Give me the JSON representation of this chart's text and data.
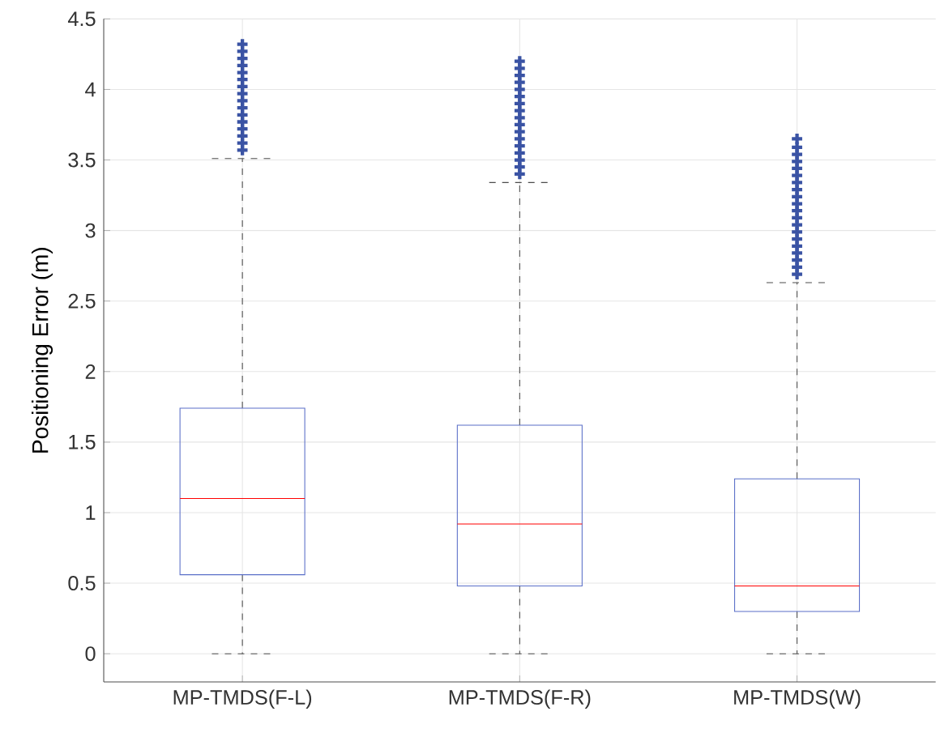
{
  "chart_data": {
    "type": "box",
    "ylabel": "Positioning Error (m)",
    "categories": [
      "MP-TMDS(F-L)",
      "MP-TMDS(F-R)",
      "MP-TMDS(W)"
    ],
    "color": "#5a6fc8",
    "boxes": [
      {
        "low": 0,
        "q1": 0.56,
        "median": 1.1,
        "q3": 1.74,
        "high": 3.51,
        "outliers": [
          3.57,
          3.62,
          3.67,
          3.72,
          3.77,
          3.82,
          3.87,
          3.92,
          3.97,
          4.02,
          4.07,
          4.12,
          4.17,
          4.22,
          4.27,
          4.32
        ]
      },
      {
        "low": 0,
        "q1": 0.48,
        "median": 0.92,
        "q3": 1.62,
        "high": 3.34,
        "outliers": [
          3.4,
          3.45,
          3.5,
          3.55,
          3.6,
          3.65,
          3.7,
          3.75,
          3.8,
          3.85,
          3.9,
          3.95,
          4.0,
          4.05,
          4.1,
          4.15,
          4.2
        ]
      },
      {
        "low": 0,
        "q1": 0.3,
        "median": 0.48,
        "q3": 1.24,
        "high": 2.63,
        "outliers": [
          2.69,
          2.74,
          2.79,
          2.84,
          2.89,
          2.94,
          2.99,
          3.04,
          3.09,
          3.14,
          3.19,
          3.24,
          3.29,
          3.34,
          3.39,
          3.44,
          3.49,
          3.54,
          3.59,
          3.65
        ]
      }
    ],
    "ylim": [
      -0.2,
      4.5
    ],
    "yticks": [
      0,
      0.5,
      1,
      1.5,
      2,
      2.5,
      3,
      3.5,
      4,
      4.5
    ],
    "grid": true,
    "marker": "cross"
  }
}
